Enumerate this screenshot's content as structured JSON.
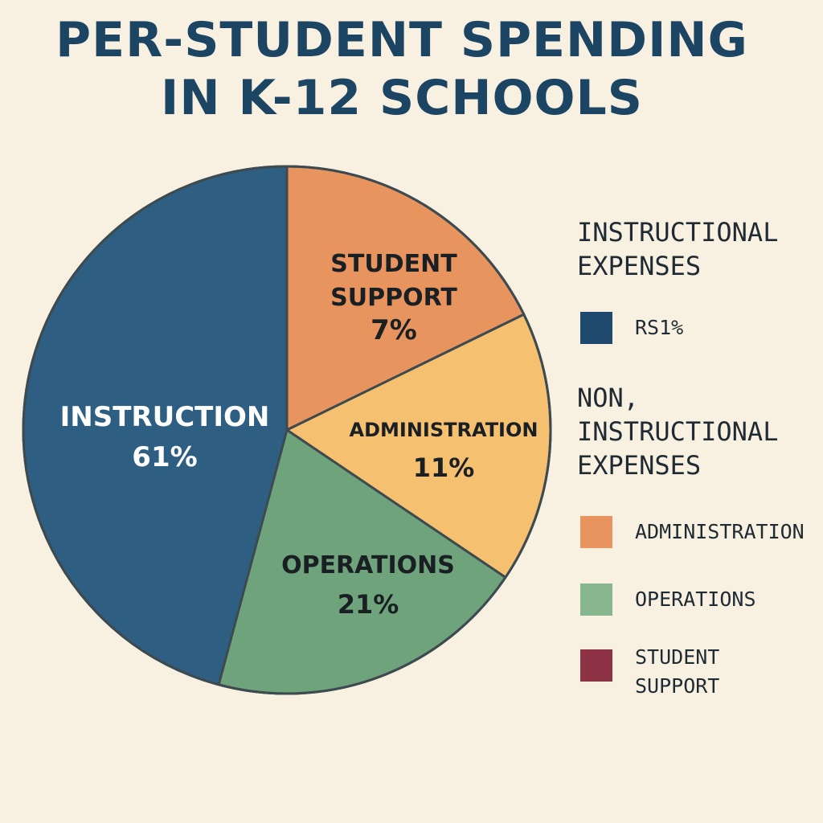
{
  "chart_data": {
    "type": "pie",
    "title": [
      "PER-STUDENT SPENDING",
      "IN K-12 SCHOOLS"
    ],
    "slices": [
      {
        "label": "INSTRUCTION",
        "pct_label": "61%",
        "value": 61,
        "color": "#2e5f83"
      },
      {
        "label": "STUDENT SUPPORT",
        "pct_label": "7%",
        "value": 7,
        "color": "#e8945f"
      },
      {
        "label": "ADMINISTRATION",
        "pct_label": "11%",
        "value": 11,
        "color": "#f5c06f"
      },
      {
        "label": "OPERATIONS",
        "pct_label": "21%",
        "value": 21,
        "color": "#6fa37c"
      }
    ],
    "legend": {
      "placement": "right",
      "groups": [
        {
          "heading": [
            "INSTRUCTIONAL",
            "EXPENSES"
          ],
          "items": [
            {
              "label": "RS1%",
              "color": "#1f4a6e"
            }
          ]
        },
        {
          "heading": [
            "NON,",
            "INSTRUCTIONAL",
            "EXPENSES"
          ],
          "items": [
            {
              "label": "ADMINISTRATION",
              "color": "#e8945f"
            },
            {
              "label": "OPERATIONS",
              "color": "#86b58e"
            },
            {
              "label": "STUDENT SUPPORT",
              "color": "#8e3245"
            }
          ]
        }
      ]
    }
  }
}
